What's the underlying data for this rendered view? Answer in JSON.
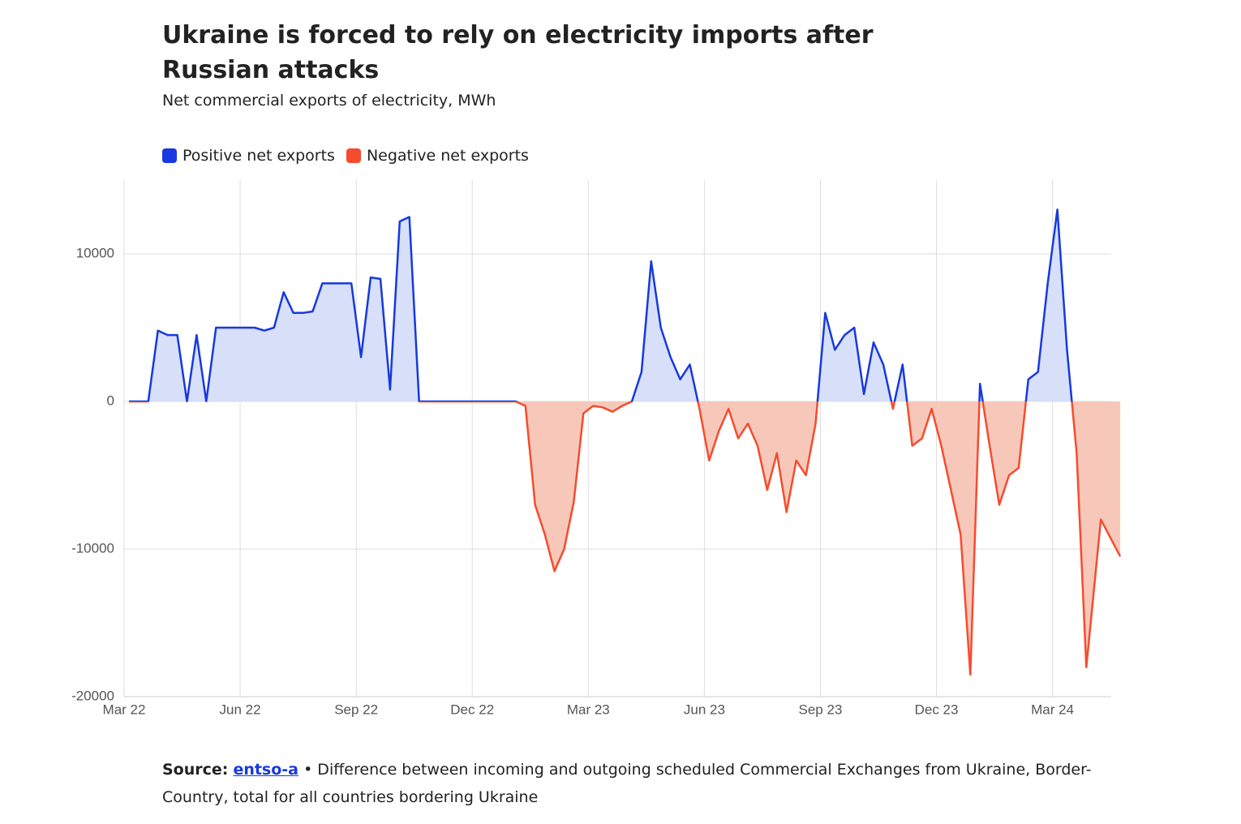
{
  "chart_data": {
    "type": "area-line",
    "title": "Ukraine is forced to rely on electricity imports after Russian attacks",
    "subtitle": "Net commercial exports of electricity, MWh",
    "legend": [
      {
        "name": "Positive net exports",
        "color": "#1639e0",
        "fill": "#d8dff9"
      },
      {
        "name": "Negative net exports",
        "color": "#f54c2e",
        "fill": "#f7c8ba"
      }
    ],
    "x": [
      "2022-03",
      "2022-03",
      "2022-03",
      "2022-03",
      "2022-04",
      "2022-04",
      "2022-04",
      "2022-04",
      "2022-05",
      "2022-05",
      "2022-05",
      "2022-05",
      "2022-06",
      "2022-06",
      "2022-06",
      "2022-06",
      "2022-07",
      "2022-07",
      "2022-07",
      "2022-07",
      "2022-08",
      "2022-08",
      "2022-08",
      "2022-08",
      "2022-09",
      "2022-09",
      "2022-09",
      "2022-09",
      "2022-10",
      "2022-10",
      "2022-10",
      "2022-10",
      "2022-11",
      "2022-11",
      "2022-11",
      "2022-11",
      "2022-12",
      "2022-12",
      "2022-12",
      "2022-12",
      "2023-01",
      "2023-01",
      "2023-01",
      "2023-01",
      "2023-02",
      "2023-02",
      "2023-02",
      "2023-02",
      "2023-03",
      "2023-03",
      "2023-03",
      "2023-03",
      "2023-04",
      "2023-04",
      "2023-04",
      "2023-04",
      "2023-05",
      "2023-05",
      "2023-05",
      "2023-05",
      "2023-06",
      "2023-06",
      "2023-06",
      "2023-06",
      "2023-07",
      "2023-07",
      "2023-07",
      "2023-07",
      "2023-08",
      "2023-08",
      "2023-08",
      "2023-08",
      "2023-09",
      "2023-09",
      "2023-09",
      "2023-09",
      "2023-10",
      "2023-10",
      "2023-10",
      "2023-10",
      "2023-11",
      "2023-11",
      "2023-11",
      "2023-11",
      "2023-12",
      "2023-12",
      "2023-12",
      "2023-12",
      "2024-01",
      "2024-01",
      "2024-01",
      "2024-01",
      "2024-02",
      "2024-02",
      "2024-02",
      "2024-02",
      "2024-03",
      "2024-03",
      "2024-03",
      "2024-03",
      "2024-04",
      "2024-04"
    ],
    "values": [
      0,
      0,
      0,
      4800,
      4500,
      4500,
      0,
      4500,
      0,
      5000,
      5000,
      5000,
      5000,
      5000,
      4800,
      5000,
      7400,
      6000,
      6000,
      6100,
      8000,
      8000,
      8000,
      8000,
      3000,
      8400,
      8300,
      800,
      12200,
      12500,
      0,
      0,
      0,
      0,
      0,
      0,
      0,
      0,
      0,
      0,
      0,
      -300,
      -7000,
      -9000,
      -11500,
      -10000,
      -6800,
      -800,
      -300,
      -400,
      -700,
      -300,
      0,
      2000,
      9500,
      5000,
      3000,
      1500,
      2500,
      -500,
      -4000,
      -2000,
      -500,
      -2500,
      -1500,
      -3000,
      -6000,
      -3500,
      -7500,
      -4000,
      -5000,
      -1500,
      6000,
      3500,
      4500,
      5000,
      500,
      4000,
      2500,
      -500,
      2500,
      -3000,
      -2500,
      -500,
      -3000,
      -6000,
      -9000,
      -18500,
      1200,
      -3000,
      -7000,
      -5000,
      -4500,
      1500,
      2000,
      8000,
      13000,
      3500,
      -3500,
      -18000,
      -8000,
      -10500
    ],
    "xlim": [
      "2022-03",
      "2024-04"
    ],
    "xticks": [
      {
        "value": "2022-03",
        "label": "Mar 22"
      },
      {
        "value": "2022-06",
        "label": "Jun 22"
      },
      {
        "value": "2022-09",
        "label": "Sep 22"
      },
      {
        "value": "2022-12",
        "label": "Dec 22"
      },
      {
        "value": "2023-03",
        "label": "Mar 23"
      },
      {
        "value": "2023-06",
        "label": "Jun 23"
      },
      {
        "value": "2023-09",
        "label": "Sep 23"
      },
      {
        "value": "2023-12",
        "label": "Dec 23"
      },
      {
        "value": "2024-03",
        "label": "Mar 24"
      }
    ],
    "ylim": [
      -20000,
      15000
    ],
    "yticks": [
      -20000,
      -10000,
      0,
      10000
    ],
    "grid": true,
    "source_label": "Source:",
    "source_link": "entso-a",
    "note": "• Difference between incoming and outgoing scheduled Commercial Exchanges from Ukraine, Border-Country, total for all countries bordering Ukraine"
  }
}
